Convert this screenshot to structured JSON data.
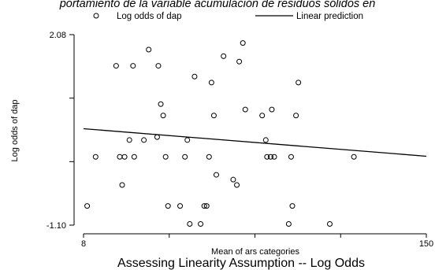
{
  "chart_data": {
    "type": "scatter",
    "title": "portamiento de la variable acumulación de residuos sólidos en",
    "caption": "Assessing Linearity Assumption -- Log Odds",
    "xlabel": "Mean of ars categories",
    "ylabel": "Log odds of dap",
    "xlim": [
      8,
      150
    ],
    "ylim": [
      -1.1,
      2.08
    ],
    "x_ticks": [
      "8",
      "150"
    ],
    "y_ticks": [
      "2.08",
      "-1.10"
    ],
    "grid": false,
    "legend_position": "top",
    "series": [
      {
        "name": "Log odds of dap",
        "kind": "scatter",
        "color": "#000000",
        "points": [
          [
            9.5,
            -0.78
          ],
          [
            13.0,
            0.04
          ],
          [
            21.5,
            1.56
          ],
          [
            23.0,
            0.04
          ],
          [
            24.0,
            -0.43
          ],
          [
            25.0,
            0.04
          ],
          [
            27.0,
            0.32
          ],
          [
            28.5,
            1.56
          ],
          [
            29.0,
            0.04
          ],
          [
            33.0,
            0.32
          ],
          [
            35.0,
            1.83
          ],
          [
            38.5,
            0.37
          ],
          [
            39.0,
            1.56
          ],
          [
            40.0,
            0.92
          ],
          [
            41.0,
            0.73
          ],
          [
            42.0,
            0.04
          ],
          [
            43.0,
            -0.78
          ],
          [
            48.0,
            -0.78
          ],
          [
            50.0,
            0.04
          ],
          [
            51.0,
            0.32
          ],
          [
            52.0,
            -1.08
          ],
          [
            54.0,
            1.38
          ],
          [
            56.5,
            -1.08
          ],
          [
            58.0,
            -0.78
          ],
          [
            59.0,
            -0.78
          ],
          [
            60.0,
            0.04
          ],
          [
            61.0,
            1.28
          ],
          [
            62.0,
            0.73
          ],
          [
            63.0,
            -0.26
          ],
          [
            66.0,
            1.72
          ],
          [
            70.0,
            -0.34
          ],
          [
            71.5,
            -0.43
          ],
          [
            72.5,
            1.63
          ],
          [
            74.0,
            1.94
          ],
          [
            75.0,
            0.83
          ],
          [
            82.0,
            0.73
          ],
          [
            83.5,
            0.32
          ],
          [
            84.0,
            0.04
          ],
          [
            85.5,
            0.04
          ],
          [
            86.0,
            0.83
          ],
          [
            87.0,
            0.04
          ],
          [
            93.0,
            -1.08
          ],
          [
            94.0,
            0.04
          ],
          [
            94.5,
            -0.78
          ],
          [
            96.0,
            0.73
          ],
          [
            97.0,
            1.28
          ],
          [
            110.0,
            -1.08
          ],
          [
            120.0,
            0.04
          ]
        ]
      },
      {
        "name": "Linear prediction",
        "kind": "line",
        "color": "#000000",
        "points": [
          [
            8,
            0.51
          ],
          [
            150,
            0.05
          ]
        ]
      }
    ]
  }
}
